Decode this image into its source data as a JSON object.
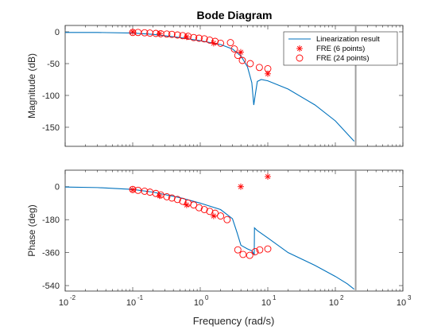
{
  "chart_data": {
    "type": "line",
    "title": "Bode Diagram",
    "xlabel": "Frequency (rad/s)",
    "xscale": "log",
    "xlim": [
      0.01,
      1000
    ],
    "xtick_labels": [
      "10",
      "10",
      "10",
      "10",
      "10",
      "10"
    ],
    "xtick_exponents": [
      "-2",
      "-1",
      "0",
      "1",
      "2",
      "3"
    ],
    "xtick_values": [
      0.01,
      0.1,
      1,
      10,
      100,
      1000
    ],
    "vline_x": 200,
    "colors": {
      "line": "#0072BD",
      "marker": "#FF0000",
      "vline": "#A0A0A0"
    },
    "legend": {
      "location": "top-right",
      "entries": [
        "Linearization result",
        "FRE (6 points)",
        "FRE (24 points)"
      ]
    },
    "magnitude": {
      "ylabel": "Magnitude (dB)",
      "ylim": [
        -180,
        10
      ],
      "yticks": [
        0,
        -50,
        -100,
        -150
      ],
      "ytick_labels": [
        "0",
        "-50",
        "-100",
        "-150"
      ],
      "line": {
        "name": "Linearization result",
        "x": [
          0.01,
          0.03,
          0.1,
          0.2,
          0.5,
          1,
          2,
          3,
          4,
          5,
          5.8,
          6.2,
          6.5,
          7,
          8,
          10,
          20,
          50,
          100,
          190
        ],
        "y": [
          -1,
          -1,
          -2,
          -4,
          -9,
          -14,
          -20,
          -27,
          -38,
          -55,
          -80,
          -115,
          -100,
          -78,
          -75,
          -77,
          -90,
          -115,
          -140,
          -172
        ]
      },
      "fre6": {
        "name": "FRE (6 points)",
        "x": [
          0.1,
          0.25,
          0.63,
          1.58,
          3.98,
          10
        ],
        "y": [
          0,
          -3,
          -8,
          -18,
          -32,
          -66
        ]
      },
      "fre24": {
        "name": "FRE (24 points)",
        "x": [
          0.1,
          0.12,
          0.15,
          0.18,
          0.22,
          0.26,
          0.32,
          0.38,
          0.46,
          0.55,
          0.66,
          0.8,
          0.96,
          1.15,
          1.38,
          1.66,
          2.0,
          2.8,
          3.2,
          3.6,
          4.2,
          5.5,
          7.5,
          10
        ],
        "y": [
          -1,
          -1,
          -1.5,
          -2,
          -2.5,
          -3,
          -3.5,
          -4,
          -5,
          -6,
          -7,
          -9,
          -10,
          -11,
          -13,
          -15,
          -18,
          -17,
          -27,
          -37,
          -45,
          -50,
          -56,
          -58
        ]
      }
    },
    "phase": {
      "ylabel": "Phase (deg)",
      "ylim": [
        -570,
        90
      ],
      "yticks": [
        0,
        -180,
        -360,
        -540
      ],
      "ytick_labels": [
        "0",
        "-180",
        "-360",
        "-540"
      ],
      "line": {
        "name": "Linearization result",
        "x": [
          0.01,
          0.03,
          0.1,
          0.2,
          0.5,
          1,
          2,
          3,
          3.5,
          4,
          5,
          5.8,
          6.3,
          6.35,
          7,
          10,
          20,
          50,
          100,
          150,
          190
        ],
        "y": [
          -2,
          -5,
          -15,
          -30,
          -60,
          -90,
          -125,
          -175,
          -250,
          -320,
          -340,
          -350,
          -370,
          -225,
          -240,
          -280,
          -360,
          -430,
          -490,
          -530,
          -560
        ]
      },
      "fre6": {
        "name": "FRE (6 points)",
        "x": [
          0.1,
          0.25,
          0.63,
          1.58,
          3.98,
          10
        ],
        "y": [
          -17,
          -50,
          -100,
          -160,
          0,
          55
        ]
      },
      "fre24": {
        "name": "FRE (24 points)",
        "x": [
          0.1,
          0.12,
          0.15,
          0.18,
          0.22,
          0.26,
          0.32,
          0.38,
          0.46,
          0.55,
          0.66,
          0.8,
          0.96,
          1.15,
          1.38,
          1.66,
          2.0,
          2.5,
          3.6,
          4.3,
          5.4,
          6.5,
          7.6,
          10
        ],
        "y": [
          -15,
          -20,
          -25,
          -30,
          -37,
          -45,
          -55,
          -62,
          -70,
          -80,
          -90,
          -100,
          -115,
          -125,
          -135,
          -145,
          -160,
          -180,
          -345,
          -370,
          -375,
          -355,
          -345,
          -340
        ]
      }
    }
  }
}
